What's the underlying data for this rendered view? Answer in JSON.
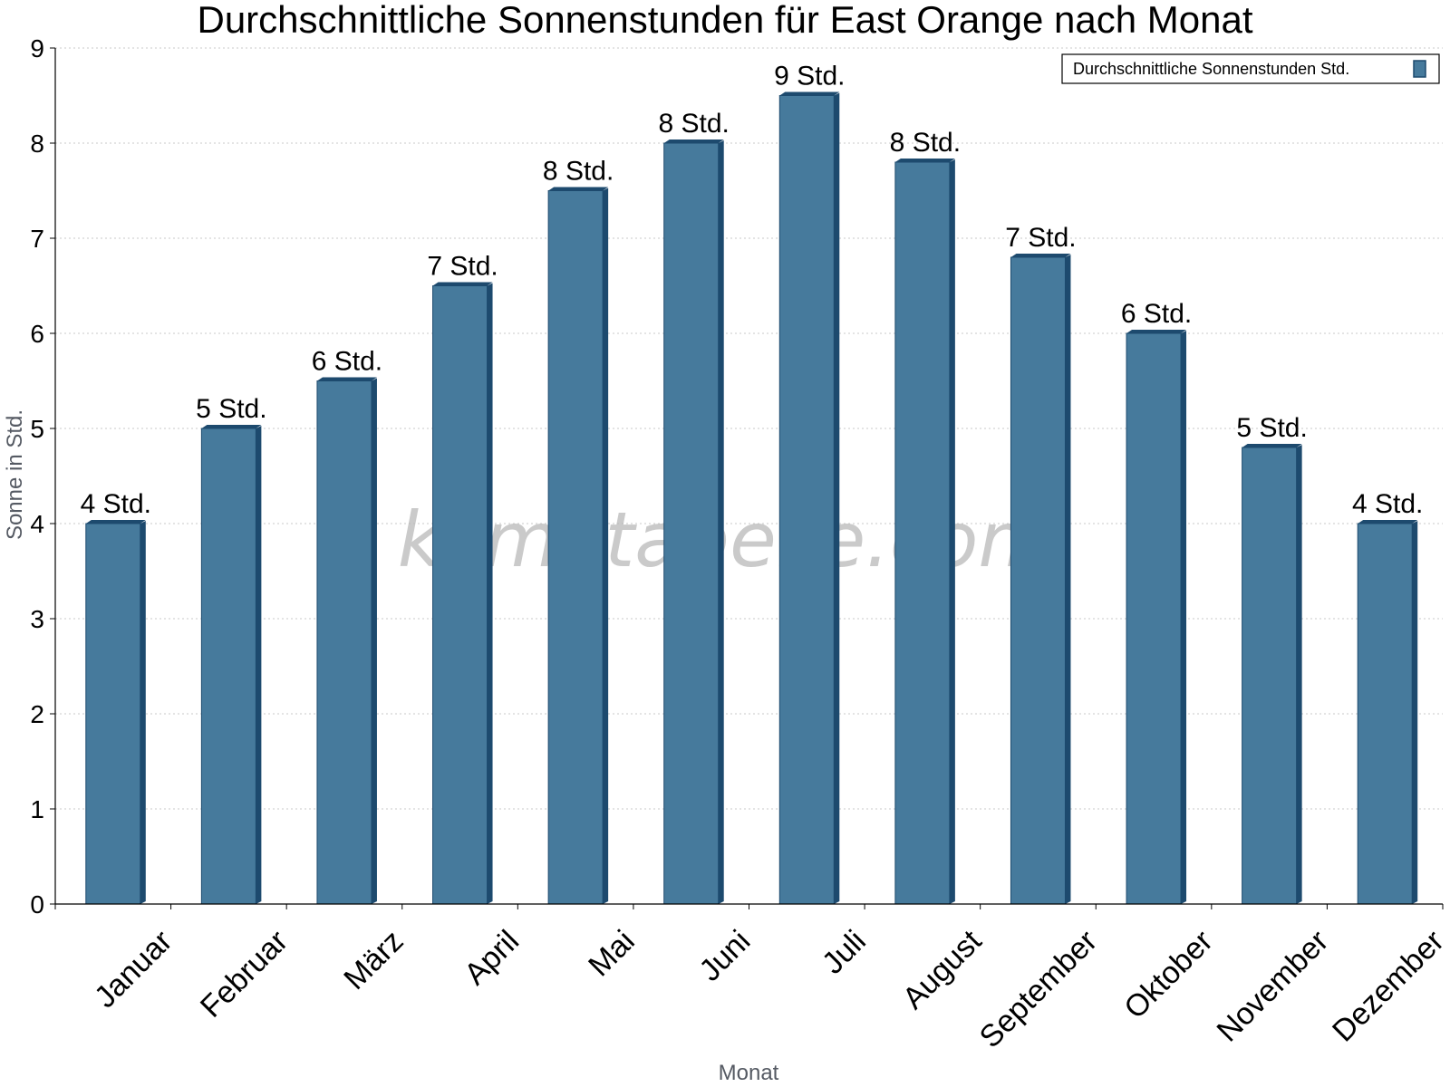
{
  "chart_data": {
    "type": "bar",
    "title": "Durchschnittliche Sonnenstunden für East Orange nach Monat",
    "xlabel": "Monat",
    "ylabel": "Sonne in Std.",
    "ylim": [
      0,
      9
    ],
    "yticks": [
      0,
      1,
      2,
      3,
      4,
      5,
      6,
      7,
      8,
      9
    ],
    "grid": true,
    "legend_position": "top-right",
    "categories": [
      "Januar",
      "Februar",
      "März",
      "April",
      "Mai",
      "Juni",
      "Juli",
      "August",
      "September",
      "Oktober",
      "November",
      "Dezember"
    ],
    "series": [
      {
        "name": "Durchschnittliche Sonnenstunden Std.",
        "values": [
          4.0,
          5.0,
          5.5,
          6.5,
          7.5,
          8.0,
          8.5,
          7.8,
          6.8,
          6.0,
          4.8,
          4.0
        ],
        "labels": [
          "4 Std.",
          "5 Std.",
          "6 Std.",
          "7 Std.",
          "8 Std.",
          "8 Std.",
          "9 Std.",
          "8 Std.",
          "7 Std.",
          "6 Std.",
          "5 Std.",
          "4 Std."
        ]
      }
    ],
    "colors": {
      "bar": "#467a9c",
      "bar_side": "#1d4a6e",
      "grid": "#c8c8c8"
    }
  },
  "watermark": "klimatabelle.com"
}
